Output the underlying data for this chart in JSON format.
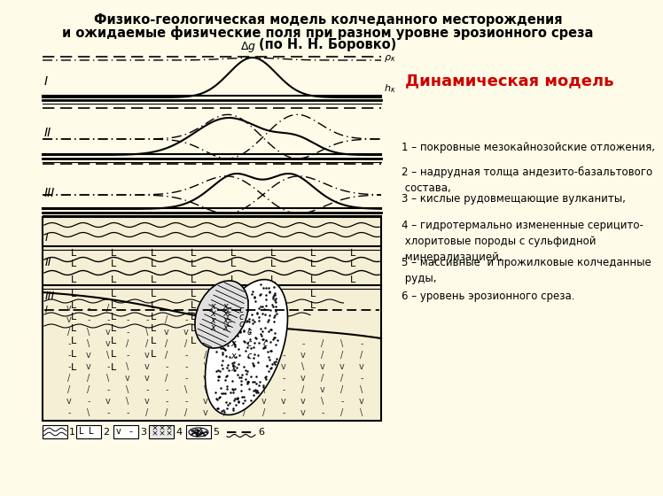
{
  "title_line1": "Физико-геологическая модель колчеданного месторождения",
  "title_line2": "и ожидаемые физические поля при разном уровне эрозионного среза",
  "title_line3": "(по Н. Н. Боровко)",
  "dynamic_model_text": "Динамическая модель",
  "legend_items": [
    "1 – покровные мезокайнозойские отложения,",
    "2 – надрудная толща андезито-базальтового\n состава,",
    "3 – кислые рудовмещающие вулканиты,",
    "4 – гидротермально измененные серицито-\n хлоритовые породы с сульфидной\n минерализацией,",
    "5 – массивные  и прожилковые колчеданные\n руды,",
    "6 – уровень эрозионного среза."
  ],
  "bg_color": "#FEFCE8",
  "title_fontsize": 10.5,
  "legend_fontsize": 8.5,
  "dynamic_color": "#CC0000"
}
